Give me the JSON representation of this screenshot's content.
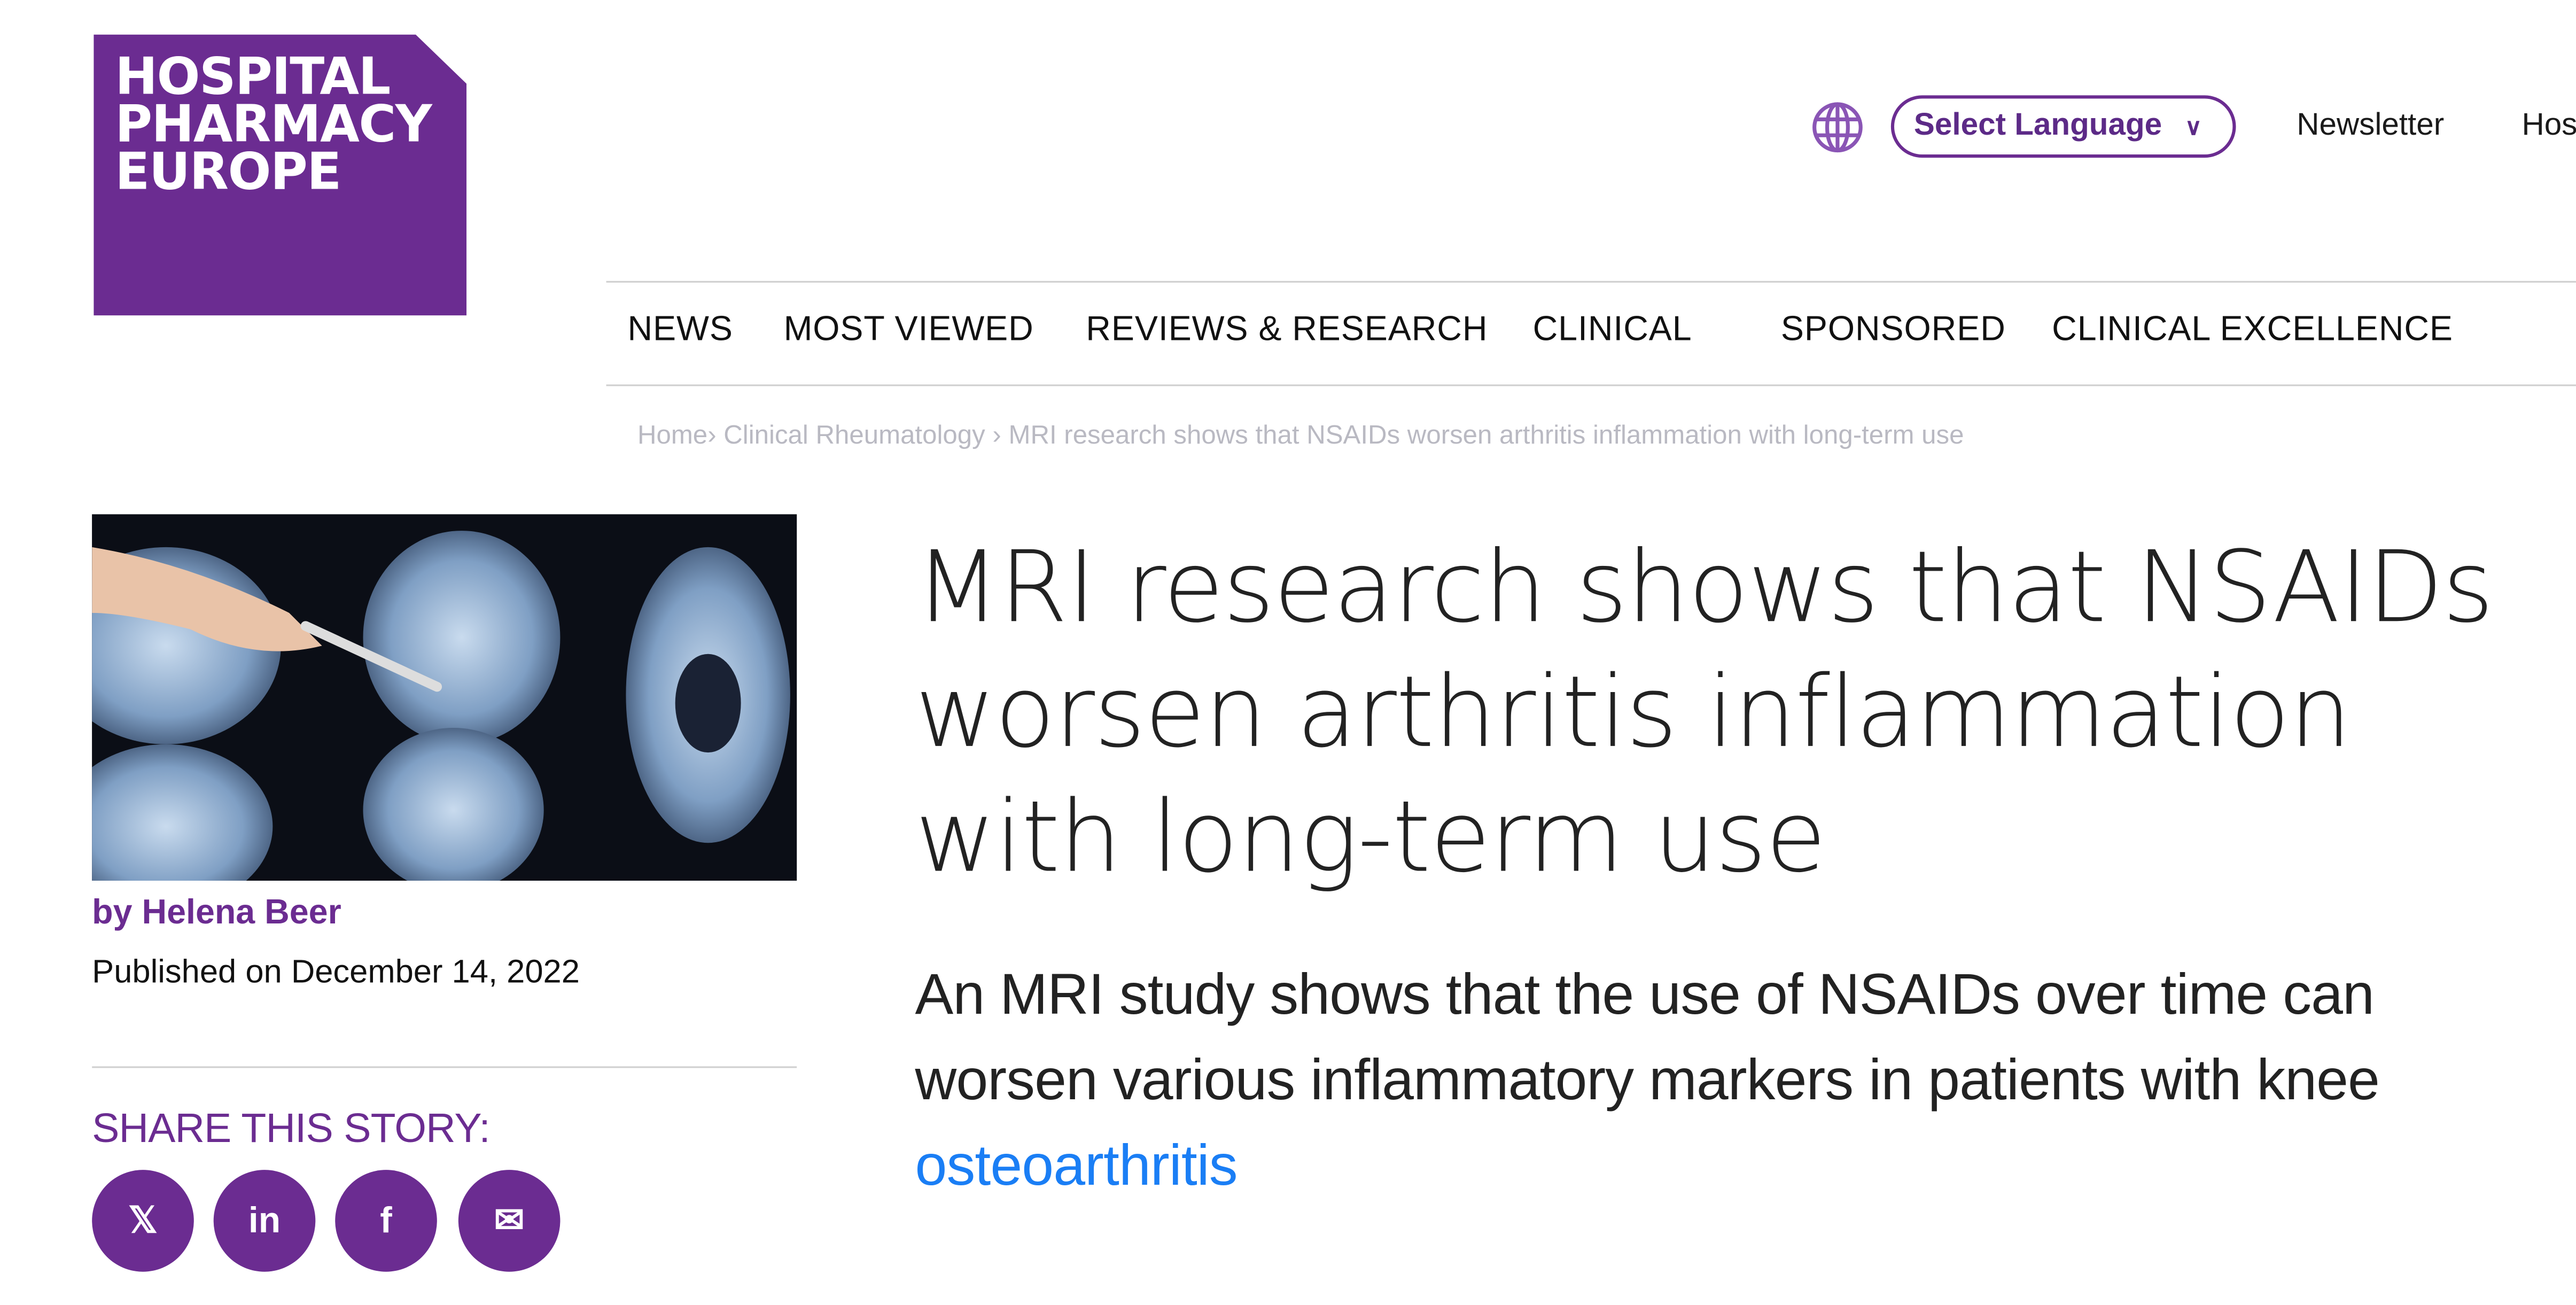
{
  "logo": {
    "text": "HOSPITAL\nPHARMACY\nEUROPE"
  },
  "header": {
    "language_select": "Select Language",
    "newsletter": "Newsletter",
    "cut_link": "Hos",
    "globe_icon": "globe-icon"
  },
  "nav": {
    "items": [
      "NEWS",
      "MOST VIEWED",
      "REVIEWS & RESEARCH",
      "CLINICAL",
      "SPONSORED",
      "CLINICAL EXCELLENCE"
    ]
  },
  "breadcrumb": {
    "home": "Home",
    "sep1": "›",
    "section": "Clinical Rheumatology",
    "sep2": "›",
    "current": "MRI research shows that NSAIDs worsen arthritis inflammation with long-term use"
  },
  "article": {
    "author": "by Helena Beer",
    "published": "Published on December 14, 2022",
    "title": "MRI research shows that NSAIDs worsen arthritis inflammation with long-term use",
    "lede_text": "An MRI study shows that the use of NSAIDs over time can worsen various inflammatory markers in patients with knee ",
    "lede_link": "osteoarthritis"
  },
  "share": {
    "label": "SHARE THIS STORY:",
    "buttons": [
      {
        "icon": "x-icon",
        "glyph": "𝕏"
      },
      {
        "icon": "linkedin-icon",
        "glyph": "in"
      },
      {
        "icon": "facebook-icon",
        "glyph": "f"
      },
      {
        "icon": "email-icon",
        "glyph": "✉"
      }
    ]
  },
  "colors": {
    "brand": "#6b2c91",
    "link": "#1a7ef5"
  }
}
